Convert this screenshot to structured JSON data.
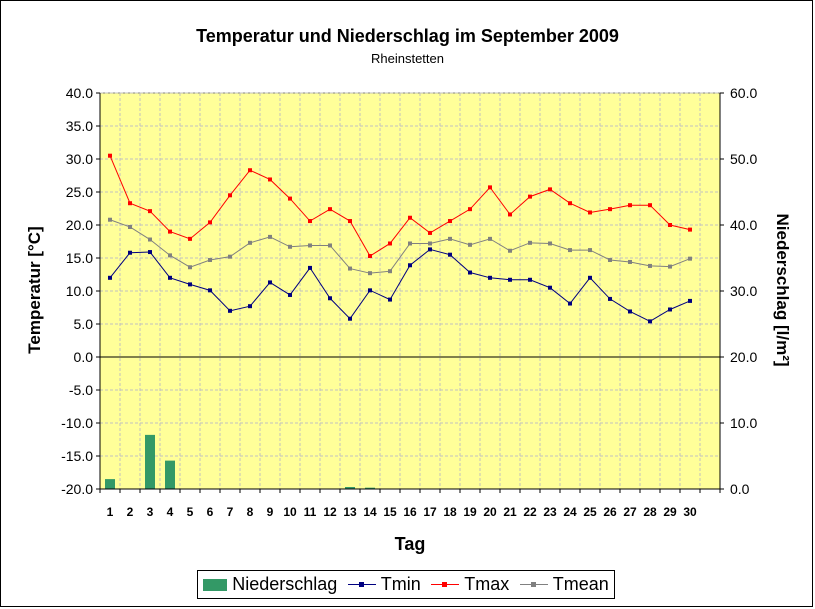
{
  "chart_data": {
    "type": "line",
    "title": "Temperatur und Niederschlag im September 2009",
    "subtitle": "Rheinstetten",
    "xlabel": "Tag",
    "ylabel_left": "Temperatur [°C]",
    "ylabel_right": "Niederschlag [l/m²]",
    "categories": [
      "1",
      "2",
      "3",
      "4",
      "5",
      "6",
      "7",
      "8",
      "9",
      "10",
      "11",
      "12",
      "13",
      "14",
      "15",
      "16",
      "17",
      "18",
      "19",
      "20",
      "21",
      "22",
      "23",
      "24",
      "25",
      "26",
      "27",
      "28",
      "29",
      "30"
    ],
    "y_left_lim": [
      -20,
      40
    ],
    "y_left_ticks": [
      "40.0",
      "35.0",
      "30.0",
      "25.0",
      "20.0",
      "15.0",
      "10.0",
      "5.0",
      "0.0",
      "-5.0",
      "-10.0",
      "-15.0",
      "-20.0"
    ],
    "y_right_lim": [
      0,
      60
    ],
    "y_right_ticks": [
      "60.0",
      "50.0",
      "40.0",
      "30.0",
      "20.0",
      "10.0",
      "0.0"
    ],
    "grid": true,
    "legend_position": "bottom",
    "bars": {
      "name": "Niederschlag",
      "axis": "right",
      "color": "#339966",
      "values": [
        1.5,
        0,
        8.2,
        4.3,
        0,
        0,
        0,
        0,
        0,
        0,
        0,
        0,
        0.3,
        0.2,
        0,
        0,
        0,
        0,
        0,
        0,
        0,
        0,
        0,
        0,
        0,
        0,
        0,
        0,
        0,
        0
      ]
    },
    "series": [
      {
        "name": "Tmin",
        "axis": "left",
        "color": "#000080",
        "values": [
          12.0,
          15.8,
          15.9,
          12.0,
          11.0,
          10.1,
          7.0,
          7.7,
          11.3,
          9.4,
          13.5,
          8.9,
          5.8,
          10.1,
          8.7,
          13.9,
          16.3,
          15.5,
          12.8,
          12.0,
          11.7,
          11.7,
          10.5,
          8.1,
          12.0,
          8.8,
          6.9,
          5.4,
          7.2,
          8.5
        ]
      },
      {
        "name": "Tmax",
        "axis": "left",
        "color": "#ff0000",
        "values": [
          30.5,
          23.3,
          22.1,
          19.0,
          17.9,
          20.4,
          24.5,
          28.3,
          26.9,
          24.0,
          20.6,
          22.4,
          20.6,
          15.3,
          17.2,
          21.1,
          18.8,
          20.6,
          22.4,
          25.7,
          21.6,
          24.3,
          25.4,
          23.3,
          21.9,
          22.4,
          23.0,
          23.0,
          20.0,
          19.3
        ]
      },
      {
        "name": "Tmean",
        "axis": "left",
        "color": "#808080",
        "values": [
          20.8,
          19.7,
          17.8,
          15.4,
          13.6,
          14.7,
          15.2,
          17.3,
          18.2,
          16.7,
          16.9,
          16.9,
          13.4,
          12.7,
          13.0,
          17.2,
          17.2,
          17.9,
          17.0,
          17.9,
          16.1,
          17.3,
          17.2,
          16.2,
          16.2,
          14.7,
          14.4,
          13.8,
          13.7,
          14.9
        ]
      }
    ],
    "colors": {
      "plot_background": "#ffff99",
      "grid": "#c0c0c0"
    }
  }
}
